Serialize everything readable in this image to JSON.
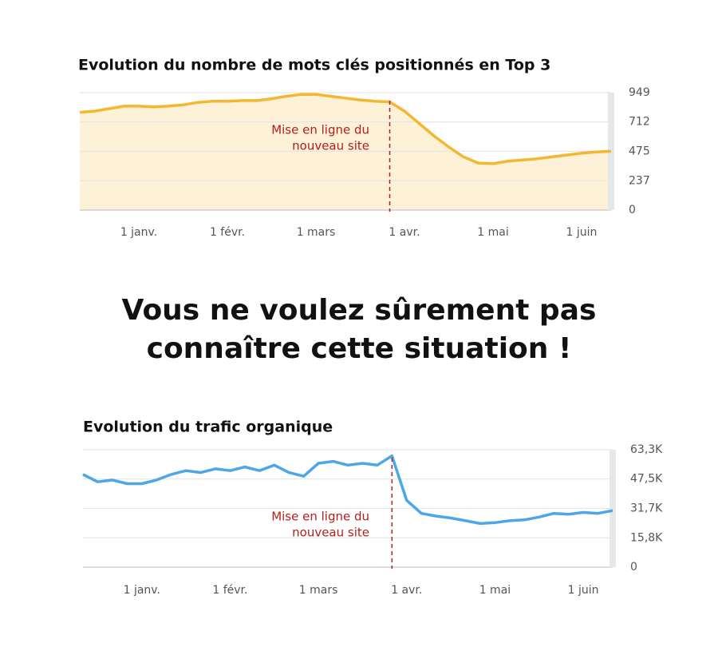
{
  "headline": [
    "Vous ne voulez sûrement pas",
    "connaître cette situation !"
  ],
  "chart_data": [
    {
      "type": "line",
      "title": "Evolution du nombre de mots clés positionnés en Top 3",
      "annotation": [
        "Mise en ligne du",
        "nouveau site"
      ],
      "categories": [
        null,
        null,
        null,
        null,
        "1 janv.",
        null,
        null,
        null,
        null,
        null,
        "1 févr.",
        null,
        null,
        null,
        null,
        null,
        "1 mars",
        null,
        null,
        null,
        null,
        null,
        "1 avr.",
        null,
        null,
        null,
        null,
        null,
        "1 mai",
        null,
        null,
        null,
        null,
        null,
        "1 juin",
        null,
        null
      ],
      "values": [
        790,
        800,
        820,
        840,
        840,
        835,
        840,
        850,
        870,
        880,
        880,
        885,
        885,
        900,
        920,
        935,
        935,
        920,
        905,
        890,
        880,
        875,
        800,
        700,
        600,
        510,
        430,
        380,
        375,
        395,
        405,
        415,
        430,
        445,
        460,
        470,
        475
      ],
      "color": "#f5b730",
      "area": true,
      "area_color": "#fdf1d8",
      "ylim": [
        0,
        949
      ],
      "yticks": [
        0,
        237,
        475,
        712,
        949
      ],
      "grid": true
    },
    {
      "type": "line",
      "title": "Evolution du trafic organique",
      "annotation": [
        "Mise en ligne du",
        "nouveau site"
      ],
      "categories": [
        null,
        null,
        null,
        null,
        "1 janv.",
        null,
        null,
        null,
        null,
        null,
        "1 févr.",
        null,
        null,
        null,
        null,
        null,
        "1 mars",
        null,
        null,
        null,
        null,
        null,
        "1 avr.",
        null,
        null,
        null,
        null,
        null,
        "1 mai",
        null,
        null,
        null,
        null,
        null,
        "1 juin",
        null,
        null
      ],
      "values": [
        50000,
        46000,
        47000,
        45000,
        45000,
        47000,
        50000,
        52000,
        51000,
        53000,
        52000,
        54000,
        52000,
        55000,
        51000,
        49000,
        56000,
        57000,
        55000,
        56000,
        55000,
        60000,
        36000,
        29000,
        27500,
        26500,
        25000,
        23500,
        24000,
        25000,
        25500,
        27000,
        29000,
        28500,
        29500,
        29000,
        30500
      ],
      "color": "#4da6e8",
      "area": false,
      "ylim": [
        0,
        63300
      ],
      "yticks": [
        0,
        {
          "value": 15800,
          "label": "15,8K"
        },
        {
          "value": 31700,
          "label": "31,7K"
        },
        {
          "value": 47500,
          "label": "47,5K"
        },
        {
          "value": 63300,
          "label": "63,3K"
        }
      ],
      "grid": true
    }
  ]
}
